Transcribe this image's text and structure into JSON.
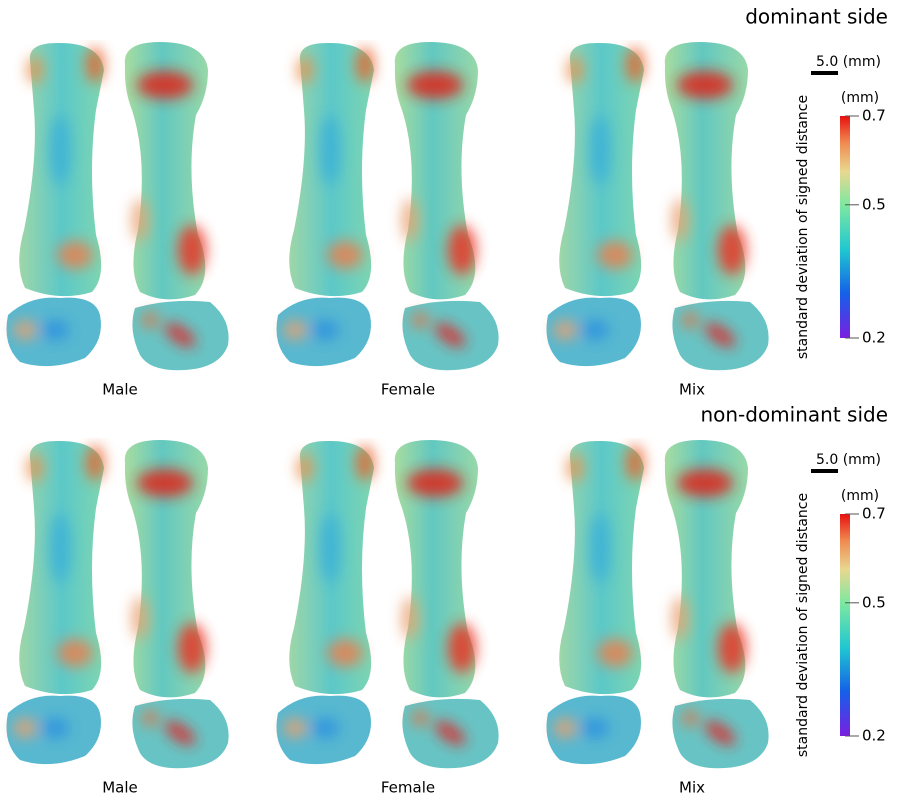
{
  "panels": [
    {
      "title": "dominant side",
      "groups": [
        "Male",
        "Female",
        "Mix"
      ],
      "scale_bar": "5.0 (mm)",
      "colorbar": {
        "unit": "(mm)",
        "label": "standard deviation of signed distance",
        "lim": [
          0.2,
          0.7
        ],
        "ticks": [
          0.7,
          0.5,
          0.2
        ]
      }
    },
    {
      "title": "non-dominant side",
      "groups": [
        "Male",
        "Female",
        "Mix"
      ],
      "scale_bar": "5.0 (mm)",
      "colorbar": {
        "unit": "(mm)",
        "label": "standard deviation of signed distance",
        "lim": [
          0.2,
          0.7
        ],
        "ticks": [
          0.7,
          0.5,
          0.2
        ]
      }
    }
  ]
}
